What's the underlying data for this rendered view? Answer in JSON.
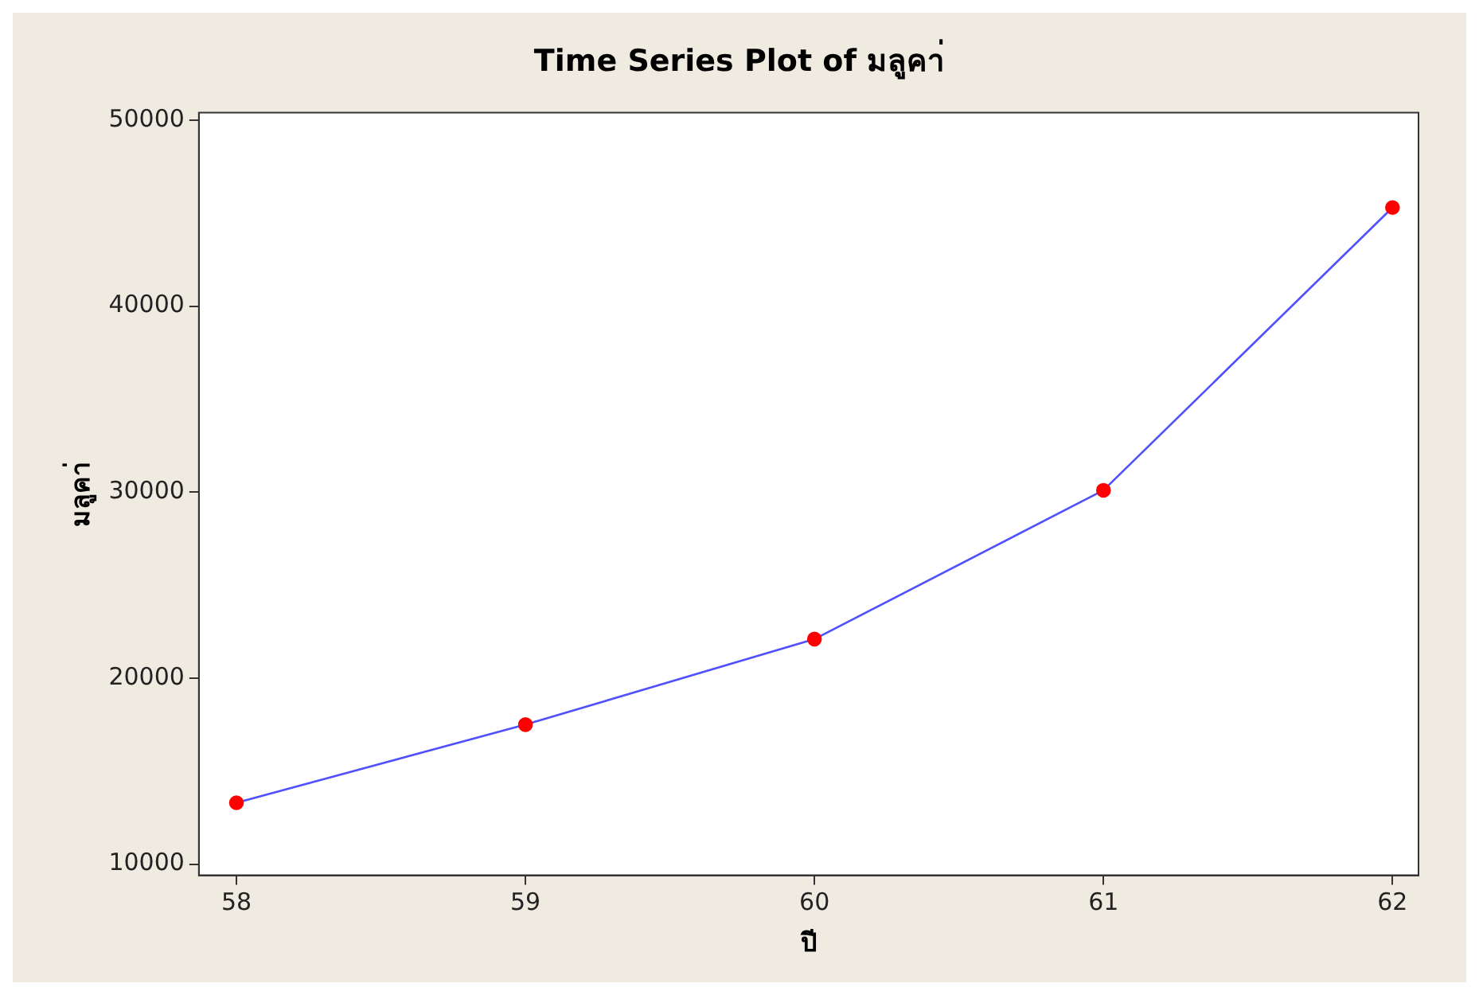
{
  "chart_data": {
    "type": "line",
    "title": "Time Series Plot of มลูคา่",
    "xlabel": "ปี",
    "ylabel": "มลูคา่",
    "x": [
      58,
      59,
      60,
      61,
      62
    ],
    "series": [
      {
        "color": "#5050ff",
        "colors": [
          "#ff0000",
          "#ff0000",
          "#ff0000",
          "#ff0000",
          "#ff0000"
        ],
        "values": [
          13300,
          17500,
          22100,
          30100,
          45300
        ]
      }
    ],
    "xlim": [
      57.87,
      62.09
    ],
    "xticks": [
      58,
      59,
      60,
      61,
      62
    ],
    "ylim": [
      9400,
      50400
    ],
    "yticks": [
      10000,
      20000,
      30000,
      40000,
      50000
    ],
    "marker": "circle",
    "line_style": "solid",
    "grid": false,
    "legend": false
  }
}
